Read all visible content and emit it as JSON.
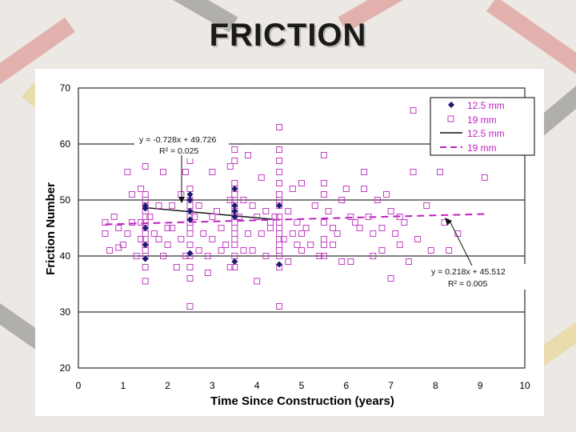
{
  "slide": {
    "title": "FRICTION"
  },
  "chart_data": {
    "type": "scatter",
    "title": "",
    "xlabel": "Time Since Construction (years)",
    "ylabel": "Friction Number",
    "xlim": [
      0,
      10
    ],
    "ylim": [
      20,
      70
    ],
    "xticks": [
      "0",
      "1",
      "2",
      "3",
      "4",
      "5",
      "6",
      "7",
      "8",
      "9",
      "10"
    ],
    "yticks": [
      "20",
      "30",
      "40",
      "50",
      "60",
      "70"
    ],
    "grid": "horizontal",
    "legend_position": "top-right",
    "legend": [
      {
        "label": "12.5 mm",
        "marker": "diamond"
      },
      {
        "label": "19 mm",
        "marker": "square"
      },
      {
        "label": "12.5 mm",
        "marker": "solid-line"
      },
      {
        "label": "19 mm",
        "marker": "dashed-line"
      }
    ],
    "annotations": [
      {
        "eq": "y = -0.728x + 49.726",
        "r2": "R² = 0.025",
        "series": "12.5 mm"
      },
      {
        "eq": "y = 0.218x + 45.512",
        "r2": "R² = 0.005",
        "series": "19 mm"
      }
    ],
    "trendlines": [
      {
        "name": "12.5 mm",
        "slope": -0.728,
        "intercept": 49.726,
        "x": [
          1.5,
          4.5
        ],
        "color": "#111111",
        "style": "solid"
      },
      {
        "name": "19 mm",
        "slope": 0.218,
        "intercept": 45.512,
        "x": [
          0.6,
          9.1
        ],
        "color": "#c020c0",
        "style": "dashed"
      }
    ],
    "series": [
      {
        "name": "12.5 mm",
        "marker": "diamond",
        "color": "#1a1a6e",
        "points": [
          [
            1.5,
            49
          ],
          [
            1.5,
            48.5
          ],
          [
            1.5,
            45
          ],
          [
            1.5,
            42
          ],
          [
            1.5,
            39.5
          ],
          [
            2.5,
            51
          ],
          [
            2.5,
            50
          ],
          [
            2.5,
            48
          ],
          [
            2.5,
            46.5
          ],
          [
            2.5,
            40.5
          ],
          [
            3.5,
            52
          ],
          [
            3.5,
            49
          ],
          [
            3.5,
            48
          ],
          [
            3.5,
            47
          ],
          [
            3.5,
            39
          ],
          [
            4.5,
            49
          ],
          [
            4.5,
            38.5
          ]
        ]
      },
      {
        "name": "19 mm",
        "marker": "square",
        "color": "#c040c0",
        "points": [
          [
            0.6,
            46
          ],
          [
            0.6,
            44
          ],
          [
            0.7,
            41
          ],
          [
            0.8,
            47
          ],
          [
            0.9,
            45
          ],
          [
            0.9,
            41.5
          ],
          [
            1.0,
            42
          ],
          [
            1.1,
            55
          ],
          [
            1.1,
            44
          ],
          [
            1.2,
            46
          ],
          [
            1.2,
            51
          ],
          [
            1.3,
            40
          ],
          [
            1.4,
            46
          ],
          [
            1.4,
            52
          ],
          [
            1.4,
            43
          ],
          [
            1.5,
            51
          ],
          [
            1.5,
            50
          ],
          [
            1.5,
            49
          ],
          [
            1.5,
            48
          ],
          [
            1.5,
            47
          ],
          [
            1.5,
            46
          ],
          [
            1.5,
            45
          ],
          [
            1.5,
            44
          ],
          [
            1.5,
            43
          ],
          [
            1.5,
            42
          ],
          [
            1.5,
            41
          ],
          [
            1.5,
            40
          ],
          [
            1.5,
            38
          ],
          [
            1.5,
            35.5
          ],
          [
            1.5,
            56
          ],
          [
            1.6,
            47
          ],
          [
            1.7,
            44
          ],
          [
            1.8,
            49
          ],
          [
            1.8,
            43
          ],
          [
            1.9,
            55
          ],
          [
            1.9,
            40
          ],
          [
            2.0,
            45
          ],
          [
            2.0,
            42
          ],
          [
            2.1,
            49
          ],
          [
            2.1,
            45
          ],
          [
            2.2,
            38
          ],
          [
            2.3,
            51
          ],
          [
            2.3,
            43
          ],
          [
            2.4,
            40
          ],
          [
            2.4,
            55
          ],
          [
            2.5,
            52
          ],
          [
            2.5,
            50
          ],
          [
            2.5,
            49
          ],
          [
            2.5,
            48
          ],
          [
            2.5,
            47
          ],
          [
            2.5,
            46
          ],
          [
            2.5,
            45
          ],
          [
            2.5,
            44
          ],
          [
            2.5,
            42
          ],
          [
            2.5,
            40
          ],
          [
            2.5,
            38
          ],
          [
            2.5,
            36
          ],
          [
            2.5,
            31
          ],
          [
            2.5,
            57
          ],
          [
            2.6,
            47
          ],
          [
            2.7,
            41
          ],
          [
            2.7,
            49
          ],
          [
            2.8,
            44
          ],
          [
            2.9,
            40
          ],
          [
            2.9,
            37
          ],
          [
            3.0,
            47
          ],
          [
            3.0,
            55
          ],
          [
            3.0,
            43
          ],
          [
            3.1,
            48
          ],
          [
            3.2,
            41
          ],
          [
            3.2,
            45
          ],
          [
            3.3,
            42
          ],
          [
            3.4,
            50
          ],
          [
            3.4,
            38
          ],
          [
            3.4,
            56
          ],
          [
            3.5,
            53
          ],
          [
            3.5,
            52
          ],
          [
            3.5,
            51
          ],
          [
            3.5,
            50
          ],
          [
            3.5,
            49
          ],
          [
            3.5,
            48
          ],
          [
            3.5,
            47
          ],
          [
            3.5,
            46
          ],
          [
            3.5,
            45
          ],
          [
            3.5,
            44
          ],
          [
            3.5,
            43
          ],
          [
            3.5,
            42
          ],
          [
            3.5,
            40
          ],
          [
            3.5,
            38
          ],
          [
            3.5,
            57
          ],
          [
            3.5,
            59
          ],
          [
            3.6,
            47
          ],
          [
            3.7,
            50
          ],
          [
            3.7,
            41
          ],
          [
            3.8,
            58
          ],
          [
            3.8,
            44
          ],
          [
            3.9,
            49
          ],
          [
            3.9,
            41
          ],
          [
            4.0,
            47
          ],
          [
            4.0,
            35.5
          ],
          [
            4.1,
            44
          ],
          [
            4.1,
            54
          ],
          [
            4.2,
            48
          ],
          [
            4.2,
            40
          ],
          [
            4.3,
            46
          ],
          [
            4.3,
            45
          ],
          [
            4.4,
            47
          ],
          [
            4.5,
            63
          ],
          [
            4.5,
            59
          ],
          [
            4.5,
            57
          ],
          [
            4.5,
            55
          ],
          [
            4.5,
            53
          ],
          [
            4.5,
            51
          ],
          [
            4.5,
            50
          ],
          [
            4.5,
            49
          ],
          [
            4.5,
            47
          ],
          [
            4.5,
            46
          ],
          [
            4.5,
            45
          ],
          [
            4.5,
            44
          ],
          [
            4.5,
            43
          ],
          [
            4.5,
            42
          ],
          [
            4.5,
            41
          ],
          [
            4.5,
            40
          ],
          [
            4.5,
            38
          ],
          [
            4.5,
            31
          ],
          [
            4.6,
            43
          ],
          [
            4.7,
            48
          ],
          [
            4.7,
            39
          ],
          [
            4.8,
            44
          ],
          [
            4.8,
            52
          ],
          [
            4.9,
            46
          ],
          [
            4.9,
            42
          ],
          [
            5.0,
            53
          ],
          [
            5.0,
            44
          ],
          [
            5.0,
            41
          ],
          [
            5.1,
            45
          ],
          [
            5.2,
            42
          ],
          [
            5.3,
            49
          ],
          [
            5.4,
            40
          ],
          [
            5.5,
            58
          ],
          [
            5.5,
            53
          ],
          [
            5.5,
            51
          ],
          [
            5.5,
            46
          ],
          [
            5.5,
            43
          ],
          [
            5.5,
            42
          ],
          [
            5.5,
            40
          ],
          [
            5.6,
            48
          ],
          [
            5.7,
            45
          ],
          [
            5.7,
            42
          ],
          [
            5.8,
            44
          ],
          [
            5.9,
            39
          ],
          [
            5.9,
            50
          ],
          [
            6.0,
            52
          ],
          [
            6.1,
            47
          ],
          [
            6.1,
            39
          ],
          [
            6.2,
            46
          ],
          [
            6.3,
            45
          ],
          [
            6.4,
            55
          ],
          [
            6.4,
            52
          ],
          [
            6.5,
            47
          ],
          [
            6.6,
            44
          ],
          [
            6.6,
            40
          ],
          [
            6.7,
            50
          ],
          [
            6.8,
            45
          ],
          [
            6.8,
            41
          ],
          [
            6.9,
            51
          ],
          [
            7.0,
            48
          ],
          [
            7.0,
            36
          ],
          [
            7.1,
            44
          ],
          [
            7.2,
            47
          ],
          [
            7.2,
            42
          ],
          [
            7.3,
            46
          ],
          [
            7.4,
            39
          ],
          [
            7.5,
            55
          ],
          [
            7.5,
            66
          ],
          [
            7.6,
            43
          ],
          [
            7.8,
            49
          ],
          [
            7.9,
            41
          ],
          [
            8.1,
            55
          ],
          [
            8.2,
            46
          ],
          [
            8.3,
            41
          ],
          [
            8.5,
            44
          ],
          [
            9.1,
            54
          ]
        ]
      }
    ]
  }
}
